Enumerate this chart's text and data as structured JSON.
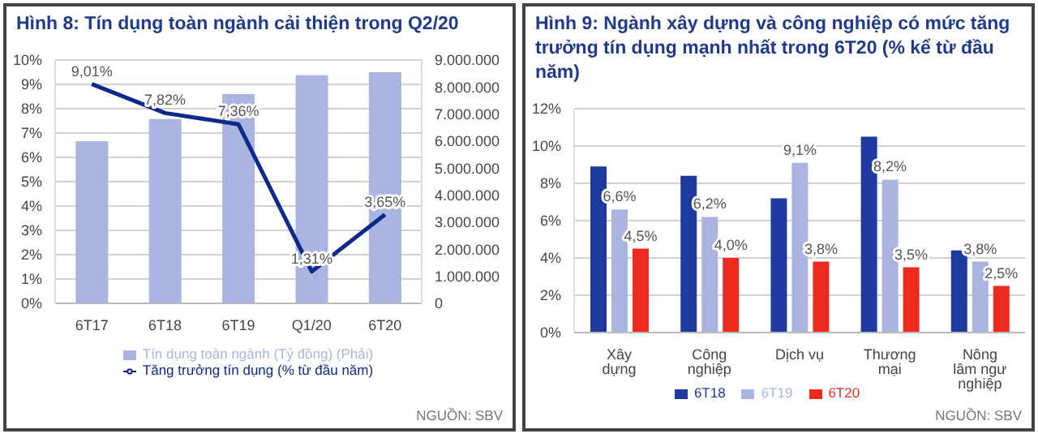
{
  "chart_data": [
    {
      "type": "bar",
      "title": "Hình 8: Tín dụng toàn ngành cải thiện trong Q2/20",
      "categories": [
        "6T17",
        "6T18",
        "6T19",
        "Q1/20",
        "6T20"
      ],
      "series": [
        {
          "name": "Tín dụng toàn ngành (Tỷ đồng) (Phải)",
          "color": "#a9b4e0",
          "axis": "y2",
          "values": [
            6000000,
            6820000,
            7740000,
            8440000,
            8550000
          ]
        },
        {
          "name": "Tăng trưởng tín dụng (% từ đầu năm)",
          "type": "line",
          "color": "#0d2a8a",
          "axis": "y",
          "values": [
            9.01,
            7.82,
            7.36,
            1.31,
            3.65
          ],
          "value_labels": [
            "9,01%",
            "7,82%",
            "7,36%",
            "1,31%",
            "3,65%"
          ]
        }
      ],
      "ylim": [
        0,
        10
      ],
      "yticks": [
        {
          "value": 0,
          "label": "0%"
        },
        {
          "value": 1,
          "label": "1%"
        },
        {
          "value": 2,
          "label": "2%"
        },
        {
          "value": 3,
          "label": "3%"
        },
        {
          "value": 4,
          "label": "4%"
        },
        {
          "value": 5,
          "label": "5%"
        },
        {
          "value": 6,
          "label": "6%"
        },
        {
          "value": 7,
          "label": "7%"
        },
        {
          "value": 8,
          "label": "8%"
        },
        {
          "value": 9,
          "label": "9%"
        },
        {
          "value": 10,
          "label": "10%"
        }
      ],
      "y2lim": [
        0,
        9000000
      ],
      "y2ticks": [
        0,
        {
          "value": 1000000,
          "label": "1.000.000"
        },
        {
          "value": 2000000,
          "label": "2.000.000"
        },
        {
          "value": 3000000,
          "label": "3.000.000"
        },
        {
          "value": 4000000,
          "label": "4.000.000"
        },
        {
          "value": 5000000,
          "label": "5.000.000"
        },
        {
          "value": 6000000,
          "label": "6.000.000"
        },
        {
          "value": 7000000,
          "label": "7.000.000"
        },
        {
          "value": 8000000,
          "label": "8.000.000"
        },
        {
          "value": 9000000,
          "label": "9.000.000"
        }
      ],
      "grid": "y",
      "legend": "bottom",
      "marker": "none",
      "annotations": [
        "NGUỒN: SBV"
      ]
    },
    {
      "type": "bar",
      "title": "Hình 9: Ngành xây dựng và công nghiệp có mức tăng trưởng tín dụng mạnh nhất trong 6T20 (% kể từ đầu năm)",
      "categories": [
        "Xây dựng",
        "Công nghiệp",
        "Dịch vụ",
        "Thương mại",
        "Nông lâm ngư nghiệp"
      ],
      "series": [
        {
          "name": "6T18",
          "color": "#1f3a9e",
          "values": [
            8.9,
            8.4,
            7.2,
            10.5,
            4.4
          ]
        },
        {
          "name": "6T19",
          "color": "#a9b4e0",
          "values": [
            6.6,
            6.2,
            9.1,
            8.2,
            3.8
          ],
          "value_labels": [
            "6,6%",
            "6,2%",
            "9,1%",
            "8,2%",
            "3,8%"
          ]
        },
        {
          "name": "6T20",
          "color": "#ee2a1f",
          "values": [
            4.5,
            4.0,
            3.8,
            3.5,
            2.5
          ],
          "value_labels": [
            "4,5%",
            "4,0%",
            "3,8%",
            "3,5%",
            "2,5%"
          ]
        }
      ],
      "ylim": [
        0,
        12
      ],
      "yticks": [
        {
          "value": 0,
          "label": "0%"
        },
        {
          "value": 2,
          "label": "2%"
        },
        {
          "value": 4,
          "label": "4%"
        },
        {
          "value": 6,
          "label": "6%"
        },
        {
          "value": 8,
          "label": "8%"
        },
        {
          "value": 10,
          "label": "10%"
        },
        {
          "value": 12,
          "label": "12%"
        }
      ],
      "grid": "y",
      "legend": "bottom",
      "annotations": [
        "NGUỒN: SBV"
      ]
    }
  ]
}
